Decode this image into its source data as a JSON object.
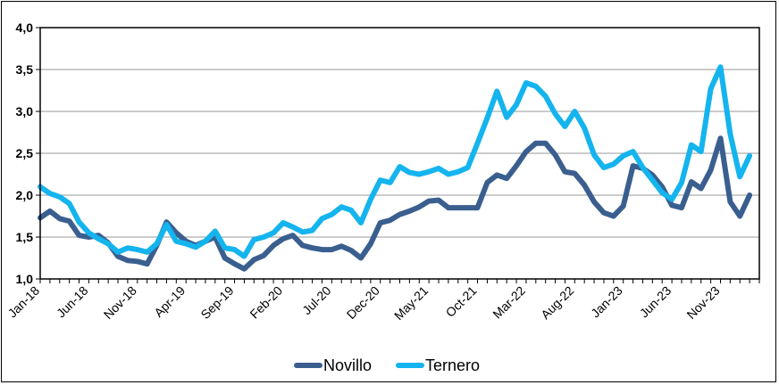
{
  "chart_data": {
    "type": "line",
    "title": "",
    "xlabel": "",
    "ylabel": "",
    "ylim": [
      1.0,
      4.0
    ],
    "yticks": [
      "1,0",
      "1,5",
      "2,0",
      "2,5",
      "3,0",
      "3,5",
      "4,0"
    ],
    "ytick_values": [
      1.0,
      1.5,
      2.0,
      2.5,
      3.0,
      3.5,
      4.0
    ],
    "grid": "horizontal",
    "legend_position": "bottom",
    "x": [
      "Jan-18",
      "Feb-18",
      "Mar-18",
      "Apr-18",
      "May-18",
      "Jun-18",
      "Jul-18",
      "Aug-18",
      "Sep-18",
      "Oct-18",
      "Nov-18",
      "Dec-18",
      "Jan-19",
      "Feb-19",
      "Mar-19",
      "Apr-19",
      "May-19",
      "Jun-19",
      "Jul-19",
      "Aug-19",
      "Sep-19",
      "Oct-19",
      "Nov-19",
      "Dec-19",
      "Jan-20",
      "Feb-20",
      "Mar-20",
      "Apr-20",
      "May-20",
      "Jun-20",
      "Jul-20",
      "Aug-20",
      "Sep-20",
      "Oct-20",
      "Nov-20",
      "Dec-20",
      "Jan-21",
      "Feb-21",
      "Mar-21",
      "Apr-21",
      "May-21",
      "Jun-21",
      "Jul-21",
      "Aug-21",
      "Sep-21",
      "Oct-21",
      "Nov-21",
      "Dec-21",
      "Jan-22",
      "Feb-22",
      "Mar-22",
      "Apr-22",
      "May-22",
      "Jun-22",
      "Jul-22",
      "Aug-22",
      "Sep-22",
      "Oct-22",
      "Nov-22",
      "Dec-22",
      "Jan-23",
      "Feb-23",
      "Mar-23",
      "Apr-23",
      "May-23",
      "Jun-23",
      "Jul-23",
      "Aug-23",
      "Sep-23",
      "Oct-23",
      "Nov-23",
      "Dec-23",
      "Jan-24",
      "Feb-24",
      "Mar-24"
    ],
    "xtick_labels": [
      "Jan-18",
      "Jun-18",
      "Nov-18",
      "Apr-19",
      "Sep-19",
      "Feb-20",
      "Jul-20",
      "Dec-20",
      "May-21",
      "Oct-21",
      "Mar-22",
      "Aug-22",
      "Jan-23",
      "Jun-23",
      "Nov-23"
    ],
    "series": [
      {
        "name": "Novillo",
        "color": "#3a5f8f",
        "values": [
          1.73,
          1.81,
          1.72,
          1.69,
          1.52,
          1.5,
          1.52,
          1.43,
          1.27,
          1.22,
          1.21,
          1.18,
          1.4,
          1.68,
          1.55,
          1.45,
          1.4,
          1.45,
          1.5,
          1.25,
          1.18,
          1.12,
          1.23,
          1.28,
          1.4,
          1.48,
          1.52,
          1.4,
          1.37,
          1.35,
          1.35,
          1.39,
          1.34,
          1.25,
          1.42,
          1.67,
          1.7,
          1.77,
          1.81,
          1.86,
          1.93,
          1.94,
          1.85,
          1.85,
          1.85,
          1.85,
          2.15,
          2.24,
          2.2,
          2.35,
          2.52,
          2.62,
          2.62,
          2.48,
          2.28,
          2.26,
          2.12,
          1.92,
          1.79,
          1.75,
          1.87,
          2.35,
          2.32,
          2.24,
          2.1,
          1.88,
          1.85,
          2.16,
          2.08,
          2.3,
          2.68,
          1.92,
          1.75,
          2.0,
          null
        ]
      },
      {
        "name": "Ternero",
        "color": "#14b4ee",
        "values": [
          2.1,
          2.02,
          1.98,
          1.9,
          1.68,
          1.55,
          1.48,
          1.42,
          1.32,
          1.37,
          1.35,
          1.32,
          1.42,
          1.65,
          1.45,
          1.42,
          1.38,
          1.45,
          1.57,
          1.37,
          1.35,
          1.27,
          1.47,
          1.5,
          1.55,
          1.67,
          1.62,
          1.56,
          1.58,
          1.72,
          1.77,
          1.86,
          1.82,
          1.67,
          1.95,
          2.18,
          2.15,
          2.34,
          2.27,
          2.25,
          2.28,
          2.32,
          2.25,
          2.28,
          2.33,
          2.62,
          2.92,
          3.24,
          2.93,
          3.08,
          3.34,
          3.3,
          3.18,
          2.97,
          2.82,
          3.0,
          2.8,
          2.48,
          2.33,
          2.37,
          2.47,
          2.52,
          2.33,
          2.18,
          2.03,
          1.95,
          2.15,
          2.6,
          2.52,
          3.27,
          3.53,
          2.73,
          2.22,
          2.47,
          null
        ]
      }
    ]
  }
}
